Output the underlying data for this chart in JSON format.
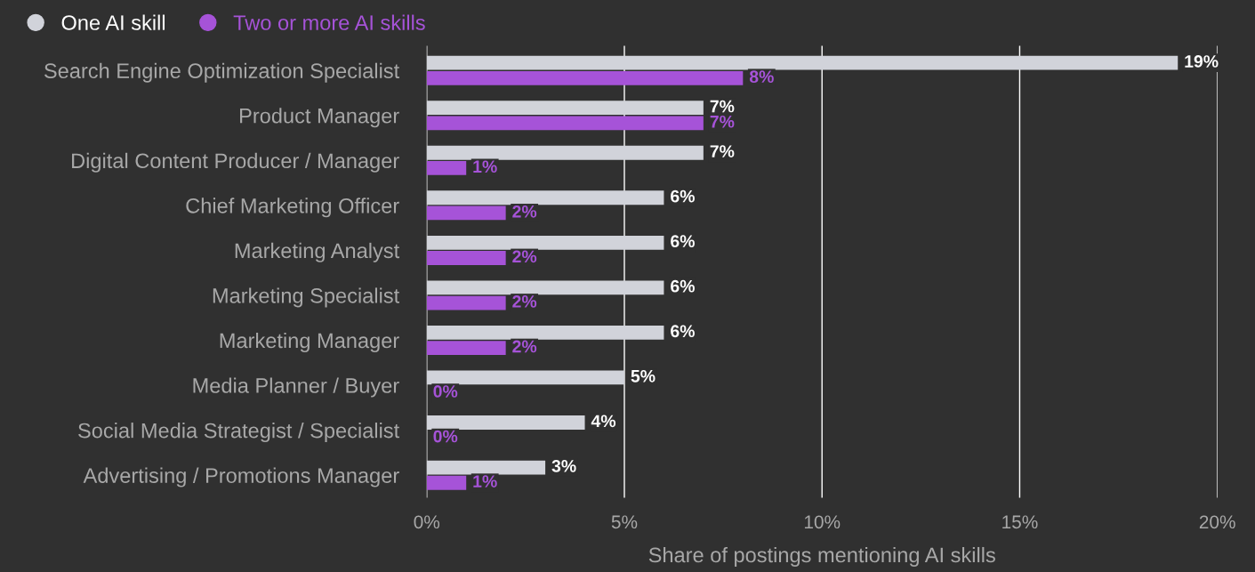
{
  "chart_data": {
    "type": "bar",
    "orientation": "horizontal",
    "xlabel": "Share of postings mentioning AI skills",
    "categories": [
      "Search Engine Optimization Specialist",
      "Product Manager",
      "Digital Content Producer / Manager",
      "Chief Marketing Officer",
      "Marketing Analyst",
      "Marketing Specialist",
      "Marketing Manager",
      "Media Planner / Buyer",
      "Social Media Strategist / Specialist",
      "Advertising / Promotions Manager"
    ],
    "series": [
      {
        "name": "One AI skill",
        "color": "#d1d3da",
        "values": [
          19,
          7,
          7,
          6,
          6,
          6,
          6,
          5,
          4,
          3
        ],
        "value_labels": [
          "19%",
          "7%",
          "7%",
          "6%",
          "6%",
          "6%",
          "6%",
          "5%",
          "4%",
          "3%"
        ]
      },
      {
        "name": "Two or more AI skills",
        "color": "#a653d8",
        "values": [
          8,
          7,
          1,
          2,
          2,
          2,
          2,
          0,
          0,
          1
        ],
        "value_labels": [
          "8%",
          "7%",
          "1%",
          "2%",
          "2%",
          "2%",
          "2%",
          "0%",
          "0%",
          "1%"
        ]
      }
    ],
    "xlim": [
      0,
      20
    ],
    "xticks": [
      {
        "value": 0,
        "label": "0%"
      },
      {
        "value": 5,
        "label": "5%"
      },
      {
        "value": 10,
        "label": "10%"
      },
      {
        "value": 15,
        "label": "15%"
      },
      {
        "value": 20,
        "label": "20%"
      }
    ],
    "grid": "x",
    "legend": "top left"
  }
}
